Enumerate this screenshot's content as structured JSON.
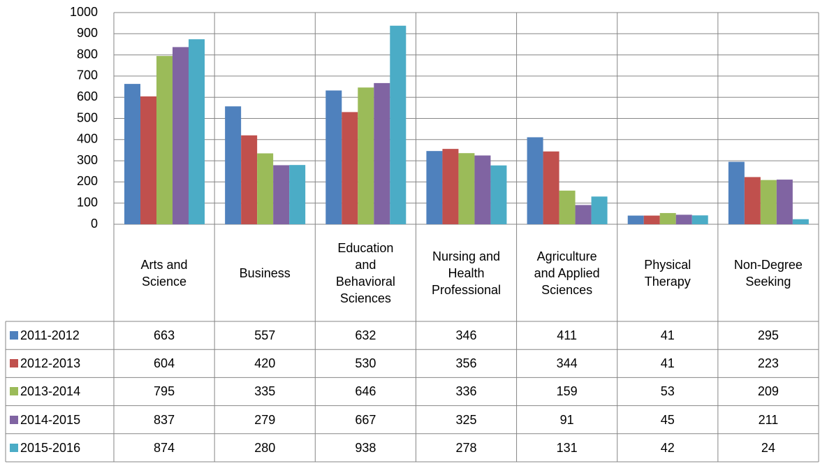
{
  "chart_data": {
    "type": "bar",
    "categories": [
      "Arts and Science",
      "Business",
      "Education and Behavioral Sciences",
      "Nursing and Health Professional",
      "Agriculture and Applied Sciences",
      "Physical Therapy",
      "Non-Degree Seeking"
    ],
    "series": [
      {
        "name": "2011-2012",
        "color": "#4f81bd",
        "values": [
          663,
          557,
          632,
          346,
          411,
          41,
          295
        ]
      },
      {
        "name": "2012-2013",
        "color": "#c0504d",
        "values": [
          604,
          420,
          530,
          356,
          344,
          41,
          223
        ]
      },
      {
        "name": "2013-2014",
        "color": "#9bbb59",
        "values": [
          795,
          335,
          646,
          336,
          159,
          53,
          209
        ]
      },
      {
        "name": "2014-2015",
        "color": "#8064a2",
        "values": [
          837,
          279,
          667,
          325,
          91,
          45,
          211
        ]
      },
      {
        "name": "2015-2016",
        "color": "#4bacc6",
        "values": [
          874,
          280,
          938,
          278,
          131,
          42,
          24
        ]
      }
    ],
    "ylim": [
      0,
      1000
    ],
    "yticks": [
      0,
      100,
      200,
      300,
      400,
      500,
      600,
      700,
      800,
      900,
      1000
    ],
    "grid": true,
    "legend": "data-table"
  }
}
